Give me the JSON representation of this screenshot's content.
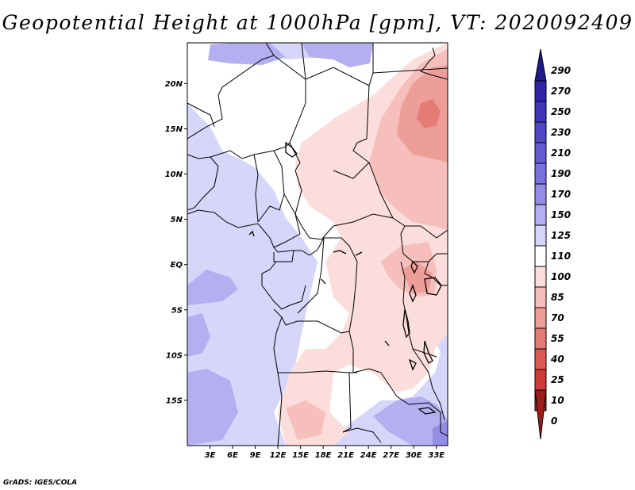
{
  "title": "Geopotential Height at 1000hPa [gpm], VT: 2020092409",
  "credit": "GrADS: IGES/COLA",
  "map": {
    "lat_ticks": [
      {
        "label": "20N",
        "lat": 20
      },
      {
        "label": "15N",
        "lat": 15
      },
      {
        "label": "10N",
        "lat": 10
      },
      {
        "label": "5N",
        "lat": 5
      },
      {
        "label": "EQ",
        "lat": 0
      },
      {
        "label": "5S",
        "lat": -5
      },
      {
        "label": "10S",
        "lat": -10
      },
      {
        "label": "15S",
        "lat": -15
      }
    ],
    "lon_ticks": [
      {
        "label": "3E",
        "lon": 3
      },
      {
        "label": "6E",
        "lon": 6
      },
      {
        "label": "9E",
        "lon": 9
      },
      {
        "label": "12E",
        "lon": 12
      },
      {
        "label": "15E",
        "lon": 15
      },
      {
        "label": "18E",
        "lon": 18
      },
      {
        "label": "21E",
        "lon": 21
      },
      {
        "label": "24E",
        "lon": 24
      },
      {
        "label": "27E",
        "lon": 27
      },
      {
        "label": "30E",
        "lon": 30
      },
      {
        "label": "33E",
        "lon": 33
      }
    ],
    "lon_range": [
      0,
      34.5
    ],
    "lat_range": [
      -20,
      24.5
    ]
  },
  "colorbar": {
    "levels": [
      {
        "label": "290",
        "color": "#1e1a8a"
      },
      {
        "label": "270",
        "color": "#2d26a3"
      },
      {
        "label": "250",
        "color": "#3c35b5"
      },
      {
        "label": "230",
        "color": "#4f47c4"
      },
      {
        "label": "210",
        "color": "#645bd1"
      },
      {
        "label": "190",
        "color": "#7a72dc"
      },
      {
        "label": "170",
        "color": "#948de6"
      },
      {
        "label": "150",
        "color": "#b3aff0"
      },
      {
        "label": "125",
        "color": "#d6d5fa"
      },
      {
        "label": "110",
        "color": "#ffffff"
      },
      {
        "label": "100",
        "color": "#fbdedc"
      },
      {
        "label": "85",
        "color": "#f6bfbb"
      },
      {
        "label": "70",
        "color": "#ee9e99"
      },
      {
        "label": "55",
        "color": "#e47c76"
      },
      {
        "label": "40",
        "color": "#d95a54"
      },
      {
        "label": "25",
        "color": "#cb3c38"
      },
      {
        "label": "10",
        "color": "#b82a27"
      },
      {
        "label": "0",
        "color": "#9e1c1a"
      }
    ]
  }
}
